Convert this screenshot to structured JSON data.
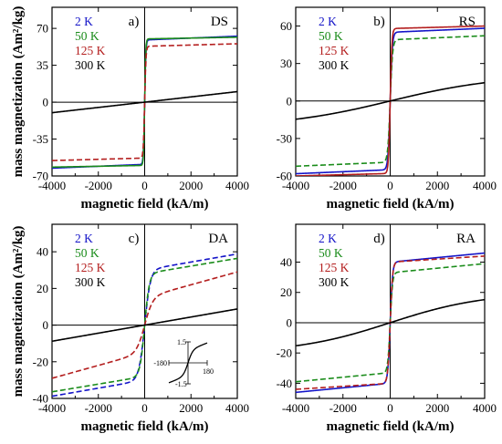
{
  "chart_data": [
    {
      "type": "line",
      "panel_letter": "a)",
      "tag": "DS",
      "xlabel": "magnetic field (kA/m)",
      "ylabel": "mass magnetization (Am²/kg)",
      "xlim": [
        -4000,
        4000
      ],
      "ylim": [
        -70,
        90
      ],
      "xticks": [
        -4000,
        -2000,
        0,
        2000,
        4000
      ],
      "xtick_labels": [
        "-4000",
        "-2000",
        "0",
        "2000",
        "4000"
      ],
      "yticks": [
        -70,
        -35,
        0,
        35,
        70
      ],
      "ytick_labels": [
        "-70",
        "-35",
        "0",
        "35",
        "70"
      ],
      "legend_position": "top-left",
      "series": [
        {
          "name": "2 K",
          "color": "#1414c8",
          "dash": "solid",
          "ms": 59,
          "hs": 50,
          "slope": 0.0009
        },
        {
          "name": "50 K",
          "color": "#1a8c1a",
          "dash": "solid",
          "ms": 60,
          "hs": 45,
          "slope": 0.0004
        },
        {
          "name": "125 K",
          "color": "#b41e1e",
          "dash": "dashed",
          "ms": 53,
          "hs": 55,
          "slope": 0.0006
        },
        {
          "name": "300 K",
          "color": "#000000",
          "dash": "solid",
          "ms": 0,
          "hs": 100,
          "slope": 0.0025
        }
      ]
    },
    {
      "type": "line",
      "panel_letter": "b)",
      "tag": "RS",
      "xlabel": "magnetic field (kA/m)",
      "ylabel": "",
      "xlim": [
        -4000,
        4000
      ],
      "ylim": [
        -60,
        75
      ],
      "xticks": [
        -4000,
        -2000,
        0,
        2000,
        4000
      ],
      "xtick_labels": [
        "-4000",
        "-2000",
        "0",
        "2000",
        "4000"
      ],
      "yticks": [
        -60,
        -30,
        0,
        30,
        60
      ],
      "ytick_labels": [
        "-60",
        "-30",
        "0",
        "30",
        "60"
      ],
      "legend_position": "top-left",
      "series": [
        {
          "name": "2 K",
          "color": "#1414c8",
          "dash": "solid",
          "ms": 55,
          "hs": 90,
          "slope": 0.0008
        },
        {
          "name": "50 K",
          "color": "#1a8c1a",
          "dash": "dashed",
          "ms": 49,
          "hs": 100,
          "slope": 0.0008
        },
        {
          "name": "125 K",
          "color": "#b41e1e",
          "dash": "solid",
          "ms": 58,
          "hs": 70,
          "slope": 0.0005
        },
        {
          "name": "300 K",
          "color": "#000000",
          "dash": "solid",
          "ms": 15,
          "hs": 4000,
          "slope": 0.0008
        }
      ]
    },
    {
      "type": "line",
      "panel_letter": "c)",
      "tag": "DA",
      "xlabel": "magnetic field (kA/m)",
      "ylabel": "mass magnetization (Am²/kg)",
      "xlim": [
        -4000,
        4000
      ],
      "ylim": [
        -40,
        55
      ],
      "xticks": [
        -4000,
        -2000,
        0,
        2000,
        4000
      ],
      "xtick_labels": [
        "-4000",
        "-2000",
        "0",
        "2000",
        "4000"
      ],
      "yticks": [
        -40,
        -20,
        0,
        20,
        40
      ],
      "ytick_labels": [
        "-40",
        "-20",
        "0",
        "20",
        "40"
      ],
      "legend_position": "top-left",
      "series": [
        {
          "name": "2 K",
          "color": "#1414c8",
          "dash": "dashed",
          "ms": 30,
          "hs": 250,
          "slope": 0.0022
        },
        {
          "name": "50 K",
          "color": "#1a8c1a",
          "dash": "dashed",
          "ms": 28,
          "hs": 200,
          "slope": 0.0021
        },
        {
          "name": "125 K",
          "color": "#b41e1e",
          "dash": "dashed",
          "ms": 15,
          "hs": 350,
          "slope": 0.0035
        },
        {
          "name": "300 K",
          "color": "#000000",
          "dash": "solid",
          "ms": 0,
          "hs": 100,
          "slope": 0.0022
        }
      ],
      "inset": {
        "xtick_labels": [
          "-180",
          "180"
        ],
        "ytick_labels": [
          "1.5",
          "-1.5"
        ]
      }
    },
    {
      "type": "line",
      "panel_letter": "d)",
      "tag": "RA",
      "xlabel": "magnetic field (kA/m)",
      "ylabel": "",
      "xlim": [
        -4000,
        4000
      ],
      "ylim": [
        -50,
        65
      ],
      "xticks": [
        -4000,
        -2000,
        0,
        2000,
        4000
      ],
      "xtick_labels": [
        "-4000",
        "-2000",
        "0",
        "2000",
        "4000"
      ],
      "yticks": [
        -40,
        -20,
        0,
        20,
        40
      ],
      "ytick_labels": [
        "-40",
        "-20",
        "0",
        "20",
        "40"
      ],
      "legend_position": "top-left",
      "series": [
        {
          "name": "2 K",
          "color": "#1414c8",
          "dash": "solid",
          "ms": 40,
          "hs": 100,
          "slope": 0.0015
        },
        {
          "name": "50 K",
          "color": "#1a8c1a",
          "dash": "dashed",
          "ms": 33,
          "hs": 100,
          "slope": 0.0015
        },
        {
          "name": "125 K",
          "color": "#b41e1e",
          "dash": "dashed",
          "ms": 40,
          "hs": 100,
          "slope": 0.001
        },
        {
          "name": "300 K",
          "color": "#000000",
          "dash": "solid",
          "ms": 20,
          "hs": 4000,
          "slope": 0.0
        }
      ]
    }
  ]
}
